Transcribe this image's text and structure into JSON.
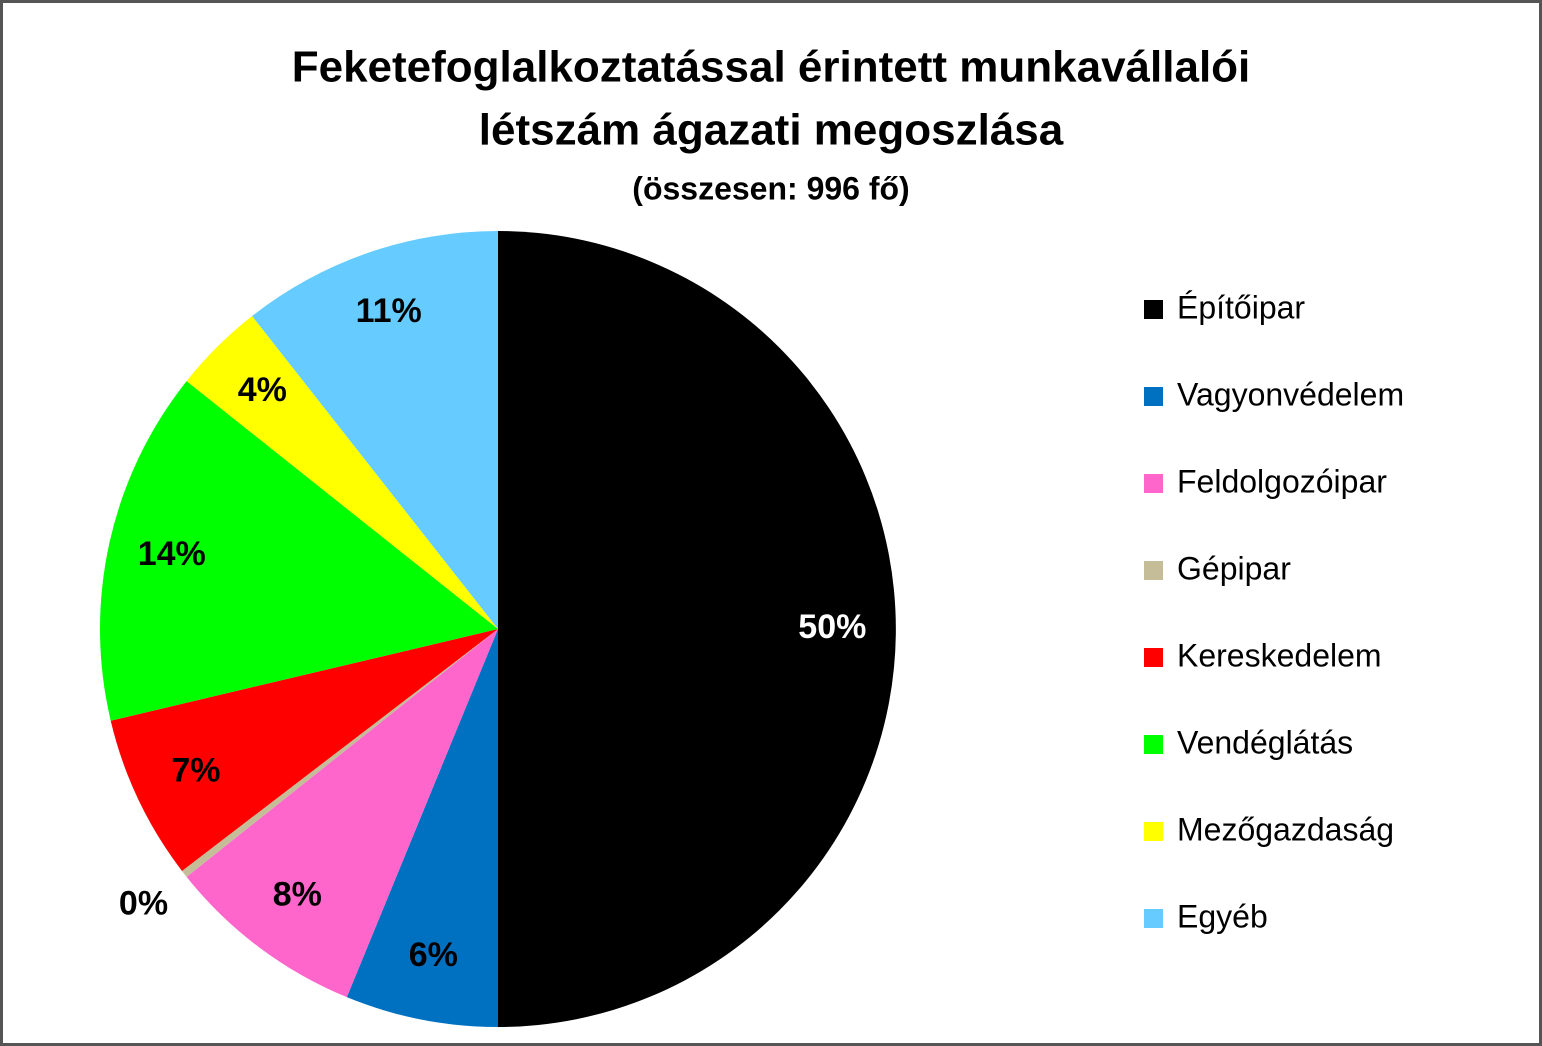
{
  "chart_data": {
    "type": "pie",
    "title": [
      "Feketefoglalkoztatással érintett munkavállalói",
      "létszám ágazati megoszlása"
    ],
    "subtitle": "(összesen: 996 fő)",
    "categories": [
      "Építőipar",
      "Vagyonvédelem",
      "Feldolgozóipar",
      "Gépipar",
      "Kereskedelem",
      "Vendéglátás",
      "Mezőgazdaság",
      "Egyéb"
    ],
    "values": [
      50,
      6.2,
      8.1,
      0.3,
      6.7,
      14.4,
      3.7,
      10.6
    ],
    "value_labels": [
      "50%",
      "6%",
      "8%",
      "0%",
      "7%",
      "14%",
      "4%",
      "11%"
    ],
    "colors": [
      "#000000",
      "#0070c0",
      "#ff66cc",
      "#c4bd97",
      "#ff0000",
      "#00ff00",
      "#ffff00",
      "#66ccff"
    ],
    "legend": "right"
  }
}
